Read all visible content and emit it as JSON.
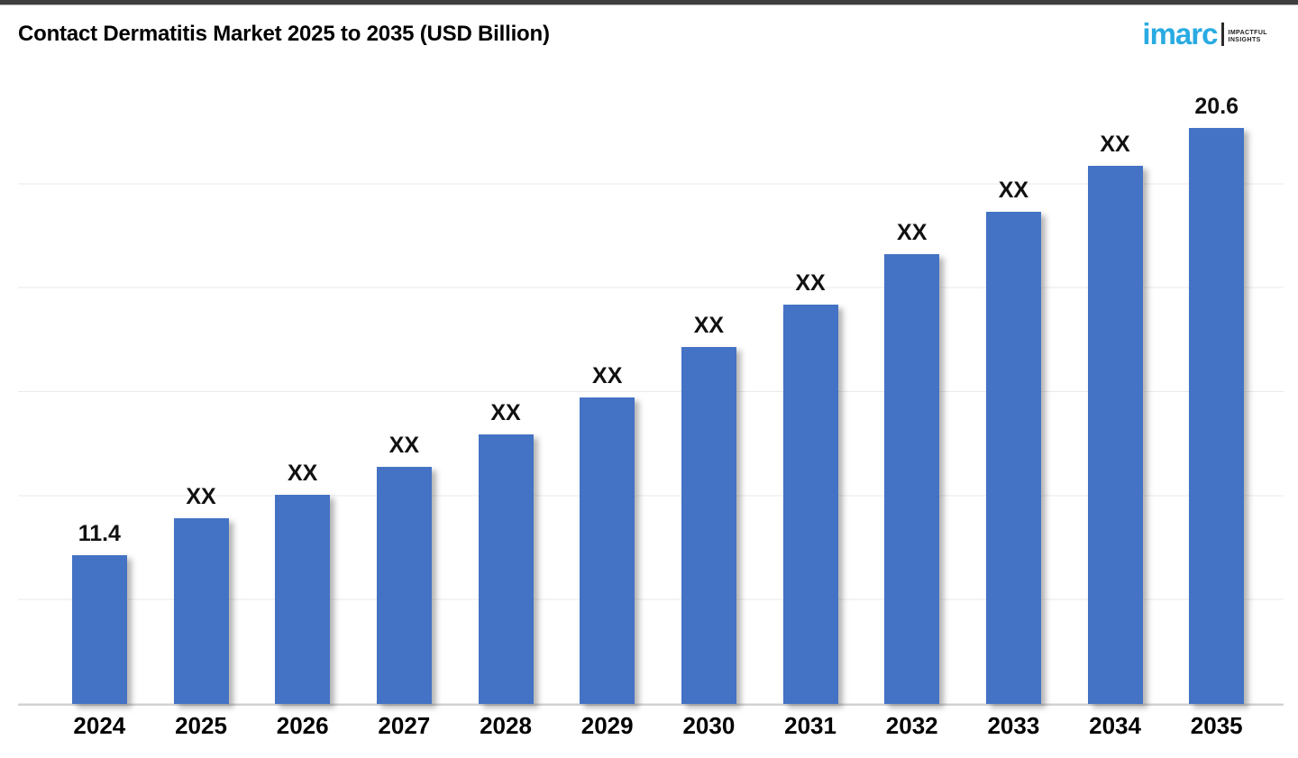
{
  "page": {
    "top_strip_color": "#3e3e3e",
    "background_color": "#ffffff"
  },
  "header": {
    "title": "Contact Dermatitis Market 2025 to 2035 (USD Billion)",
    "logo": {
      "brand": "imarc",
      "tagline_line1": "IMPACTFUL",
      "tagline_line2": "INSIGHTS",
      "brand_color": "#29abe2"
    }
  },
  "chart_data": {
    "type": "bar",
    "title": "Contact Dermatitis Market 2025 to 2035 (USD Billion)",
    "unit": "USD Billion",
    "categories": [
      "2024",
      "2025",
      "2026",
      "2027",
      "2028",
      "2029",
      "2030",
      "2031",
      "2032",
      "2033",
      "2034",
      "2035"
    ],
    "values": [
      11.4,
      12.2,
      12.7,
      13.3,
      14.0,
      14.8,
      15.9,
      16.8,
      17.9,
      18.8,
      19.8,
      20.6
    ],
    "bar_labels": [
      "11.4",
      "XX",
      "XX",
      "XX",
      "XX",
      "XX",
      "XX",
      "XX",
      "XX",
      "XX",
      "XX",
      "20.6"
    ],
    "values_note": "Only 2024 (11.4) and 2035 (20.6) are shown; XX bars masked, values estimated from bar heights",
    "bar_color": "#4472c4",
    "ylim": [
      8.2,
      21.6
    ],
    "grid": true,
    "legend": false,
    "y_axis_labels_visible": false
  }
}
